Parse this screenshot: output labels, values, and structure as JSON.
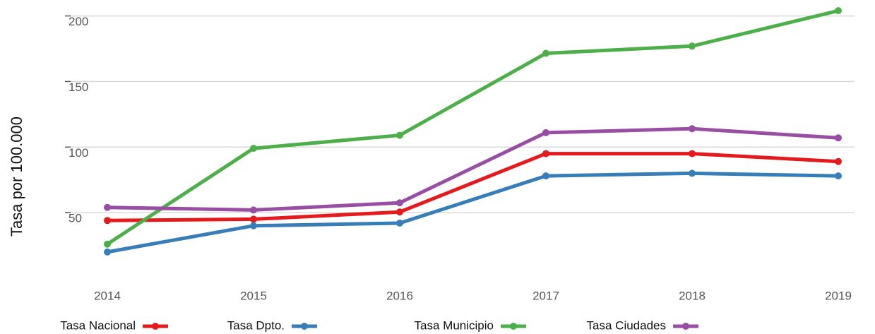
{
  "chart_data": {
    "type": "line",
    "y_label": "Tasa por 100.000",
    "categories": [
      "2014",
      "2015",
      "2016",
      "2017",
      "2018",
      "2019"
    ],
    "series": [
      {
        "name": "Tasa Nacional",
        "color": "#e41a1c",
        "values": [
          44,
          45,
          50.5,
          95,
          95,
          89
        ]
      },
      {
        "name": "Tasa Dpto.",
        "color": "#377eb8",
        "values": [
          20,
          40,
          42,
          78,
          80,
          78
        ]
      },
      {
        "name": "Tasa Municipio",
        "color": "#4daf4a",
        "values": [
          26,
          99,
          109,
          171.5,
          177,
          204
        ]
      },
      {
        "name": "Tasa Ciudades",
        "color": "#984ea3",
        "values": [
          54,
          52,
          57.5,
          111,
          114,
          107
        ]
      }
    ],
    "ylim": [
      0,
      210
    ],
    "yticks": [
      50,
      100,
      150,
      200
    ],
    "grid": true
  }
}
